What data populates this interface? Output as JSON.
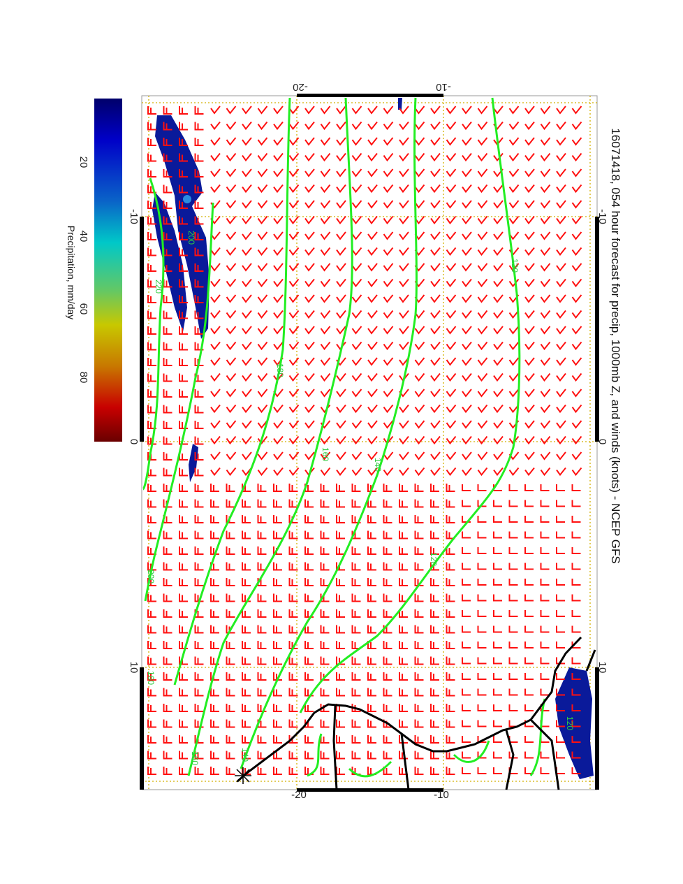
{
  "title": "16071418, 054 hour forecast for precip, 1000mb Z, and winds (knots) - NCEP GFS",
  "colorbar": {
    "label": "Precipitation, mm/day",
    "ticks": [
      "20",
      "40",
      "60",
      "80"
    ],
    "range": [
      0,
      95
    ],
    "colors": [
      "#00006a",
      "#0000c8",
      "#0a64c8",
      "#00c8c8",
      "#64c864",
      "#c8c800",
      "#c87800",
      "#c80000",
      "#6a0000"
    ]
  },
  "axes": {
    "lon_ticks": [
      "-20",
      "-10"
    ],
    "lat_ticks": [
      "-10",
      "0",
      "10"
    ]
  },
  "contour_labels": [
    "120",
    "180",
    "160",
    "140",
    "120",
    "200",
    "220",
    "200",
    "160",
    "140",
    "160",
    "120"
  ],
  "colors": {
    "contour": "#22ee22",
    "wind": "#ff1010",
    "precip": "#0a1a9a",
    "coast": "#000000",
    "grid": "#d4b000"
  }
}
